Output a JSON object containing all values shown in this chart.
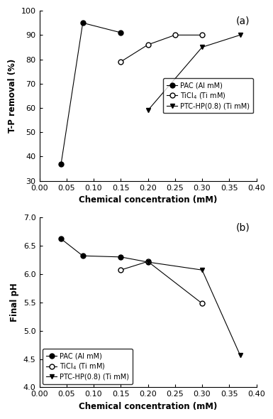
{
  "subplot_a": {
    "label": "(a)",
    "ylabel": "T-P removal (%)",
    "xlabel": "Chemical concentration (mM)",
    "xlim": [
      0.0,
      0.4
    ],
    "ylim": [
      30,
      100
    ],
    "yticks": [
      30,
      40,
      50,
      60,
      70,
      80,
      90,
      100
    ],
    "xticks": [
      0.0,
      0.05,
      0.1,
      0.15,
      0.2,
      0.25,
      0.3,
      0.35,
      0.4
    ],
    "legend_loc": "center right",
    "legend_bbox": null,
    "series": [
      {
        "label": "PAC (Al mM)",
        "x": [
          0.04,
          0.08,
          0.15
        ],
        "y": [
          37,
          95,
          91
        ],
        "marker": "o",
        "marker_fill": "black",
        "linestyle": "-",
        "color": "black"
      },
      {
        "label": "TiCl$_4$ (Ti mM)",
        "x": [
          0.15,
          0.2,
          0.25,
          0.3
        ],
        "y": [
          79,
          86,
          90,
          90
        ],
        "marker": "o",
        "marker_fill": "white",
        "linestyle": "-",
        "color": "black"
      },
      {
        "label": "PTC-HP(0.8) (Ti mM)",
        "x": [
          0.2,
          0.3,
          0.37
        ],
        "y": [
          59,
          85,
          90
        ],
        "marker": "v",
        "marker_fill": "black",
        "linestyle": "-",
        "color": "black"
      }
    ]
  },
  "subplot_b": {
    "label": "(b)",
    "ylabel": "Final pH",
    "xlabel": "Chemical concentration (mM)",
    "xlim": [
      0.0,
      0.4
    ],
    "ylim": [
      4.0,
      7.0
    ],
    "yticks": [
      4.0,
      4.5,
      5.0,
      5.5,
      6.0,
      6.5,
      7.0
    ],
    "xticks": [
      0.0,
      0.05,
      0.1,
      0.15,
      0.2,
      0.25,
      0.3,
      0.35,
      0.4
    ],
    "legend_loc": "lower left",
    "legend_bbox": null,
    "series": [
      {
        "label": "PAC (Al mM)",
        "x": [
          0.04,
          0.08,
          0.15,
          0.2
        ],
        "y": [
          6.62,
          6.32,
          6.3,
          6.21
        ],
        "marker": "o",
        "marker_fill": "black",
        "linestyle": "-",
        "color": "black"
      },
      {
        "label": "TiCl$_4$ (Ti mM)",
        "x": [
          0.15,
          0.2,
          0.3
        ],
        "y": [
          6.07,
          6.22,
          5.48
        ],
        "marker": "o",
        "marker_fill": "white",
        "linestyle": "-",
        "color": "black"
      },
      {
        "label": "PTC-HP(0.8) (Ti mM)",
        "x": [
          0.2,
          0.3,
          0.37
        ],
        "y": [
          6.21,
          6.07,
          4.57
        ],
        "marker": "v",
        "marker_fill": "black",
        "linestyle": "-",
        "color": "black"
      }
    ]
  },
  "fig_width": 3.85,
  "fig_height": 5.9,
  "dpi": 100
}
